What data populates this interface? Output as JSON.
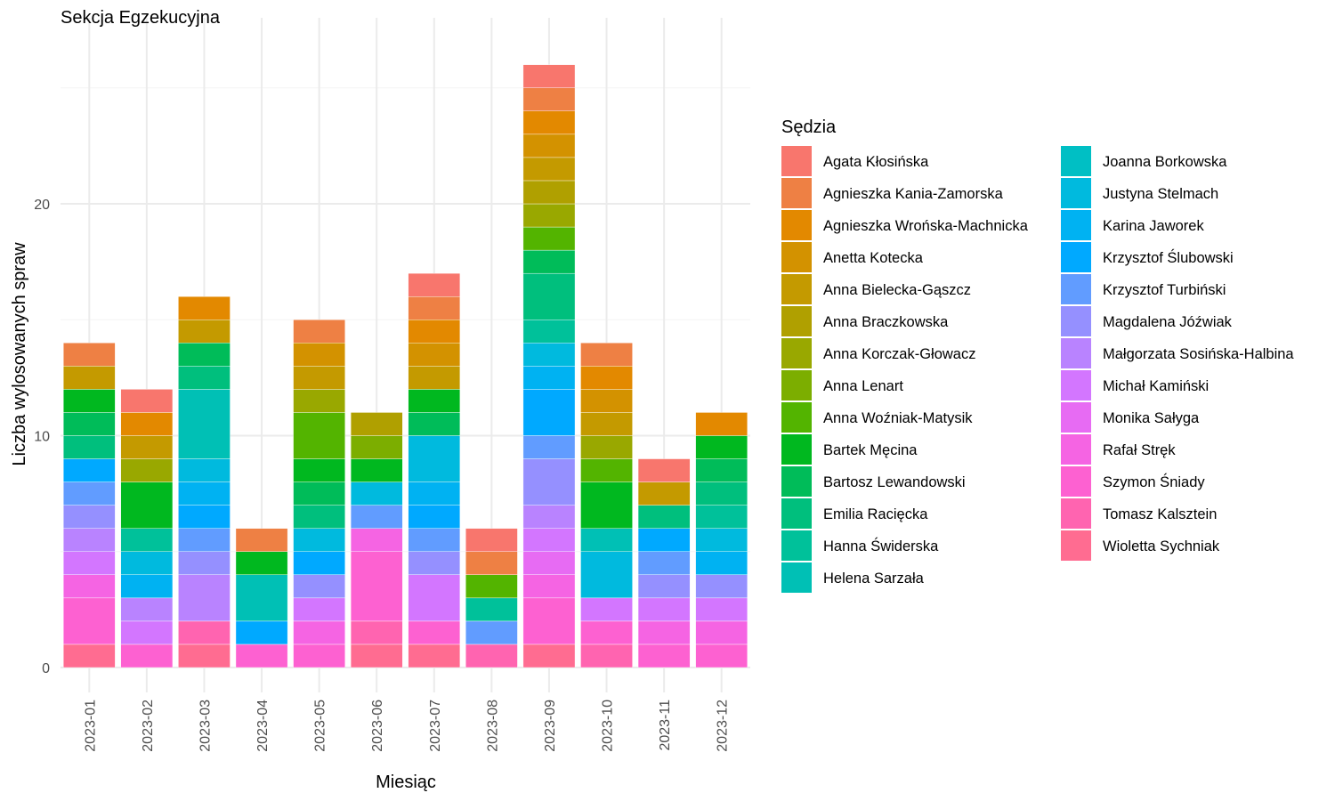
{
  "chart_data": {
    "type": "bar",
    "stacked": true,
    "title": "Sekcja Egzekucyjna",
    "xlabel": "Miesiąc",
    "ylabel": "Liczba wylosowanych spraw",
    "ylim": [
      0,
      27
    ],
    "yticks": [
      0,
      10,
      20
    ],
    "grid": true,
    "legend_title": "Sędzia",
    "legend_position": "right",
    "categories": [
      "2023-01",
      "2023-02",
      "2023-03",
      "2023-04",
      "2023-05",
      "2023-06",
      "2023-07",
      "2023-08",
      "2023-09",
      "2023-10",
      "2023-11",
      "2023-12"
    ],
    "series": [
      {
        "name": "Agata Kłosińska",
        "color": "#F8766D",
        "values": [
          0,
          1,
          0,
          0,
          0,
          0,
          1,
          1,
          1,
          0,
          1,
          0
        ]
      },
      {
        "name": "Agnieszka Kania-Zamorska",
        "color": "#EE8044",
        "values": [
          1,
          0,
          0,
          1,
          1,
          0,
          1,
          1,
          1,
          1,
          0,
          0
        ]
      },
      {
        "name": "Agnieszka Wrońska-Machnicka",
        "color": "#E38900",
        "values": [
          0,
          1,
          1,
          0,
          0,
          0,
          1,
          0,
          1,
          1,
          0,
          1
        ]
      },
      {
        "name": "Anetta Kotecka",
        "color": "#D39200",
        "values": [
          0,
          0,
          0,
          0,
          1,
          0,
          1,
          0,
          1,
          1,
          0,
          0
        ]
      },
      {
        "name": "Anna Bielecka-Gąszcz",
        "color": "#C49A00",
        "values": [
          1,
          1,
          1,
          0,
          1,
          0,
          1,
          0,
          1,
          1,
          1,
          0
        ]
      },
      {
        "name": "Anna Braczkowska",
        "color": "#B0A000",
        "values": [
          0,
          0,
          0,
          0,
          0,
          1,
          0,
          0,
          1,
          0,
          0,
          0
        ]
      },
      {
        "name": "Anna Korczak-Głowacz",
        "color": "#99A800",
        "values": [
          0,
          1,
          0,
          0,
          1,
          0,
          0,
          0,
          1,
          1,
          0,
          0
        ]
      },
      {
        "name": "Anna Lenart",
        "color": "#7CAE00",
        "values": [
          0,
          0,
          0,
          0,
          0,
          1,
          0,
          0,
          0,
          0,
          0,
          0
        ]
      },
      {
        "name": "Anna Woźniak-Matysik",
        "color": "#53B400",
        "values": [
          0,
          0,
          0,
          0,
          2,
          0,
          0,
          1,
          1,
          1,
          0,
          0
        ]
      },
      {
        "name": "Bartek Męcina",
        "color": "#00B81F",
        "values": [
          1,
          2,
          0,
          1,
          1,
          1,
          1,
          0,
          0,
          2,
          0,
          1
        ]
      },
      {
        "name": "Bartosz Lewandowski",
        "color": "#00BC59",
        "values": [
          1,
          0,
          1,
          0,
          1,
          0,
          1,
          0,
          1,
          0,
          0,
          1
        ]
      },
      {
        "name": "Emilia Racięcka",
        "color": "#00BF7D",
        "values": [
          1,
          0,
          1,
          0,
          1,
          0,
          0,
          0,
          2,
          0,
          1,
          1
        ]
      },
      {
        "name": "Hanna Świderska",
        "color": "#00C19A",
        "values": [
          0,
          1,
          0,
          0,
          0,
          0,
          0,
          1,
          1,
          0,
          0,
          1
        ]
      },
      {
        "name": "Helena Sarzała",
        "color": "#00C0B5",
        "values": [
          0,
          0,
          3,
          2,
          0,
          0,
          0,
          0,
          0,
          1,
          0,
          0
        ]
      },
      {
        "name": "Joanna Borkowska",
        "color": "#00BFC4",
        "values": [
          0,
          0,
          0,
          0,
          0,
          0,
          0,
          0,
          0,
          0,
          0,
          0
        ]
      },
      {
        "name": "Justyna Stelmach",
        "color": "#00BADE",
        "values": [
          0,
          1,
          1,
          0,
          1,
          1,
          2,
          0,
          1,
          2,
          0,
          1
        ]
      },
      {
        "name": "Karina Jaworek",
        "color": "#00B2F2",
        "values": [
          0,
          1,
          1,
          0,
          0,
          0,
          1,
          0,
          1,
          0,
          0,
          1
        ]
      },
      {
        "name": "Krzysztof Ślubowski",
        "color": "#00A9FF",
        "values": [
          1,
          0,
          1,
          1,
          1,
          0,
          1,
          0,
          2,
          0,
          1,
          0
        ]
      },
      {
        "name": "Krzysztof Turbiński",
        "color": "#619CFF",
        "values": [
          1,
          0,
          1,
          0,
          0,
          1,
          1,
          1,
          1,
          0,
          1,
          0
        ]
      },
      {
        "name": "Magdalena Jóźwiak",
        "color": "#9590FF",
        "values": [
          1,
          0,
          1,
          0,
          1,
          0,
          1,
          0,
          2,
          0,
          1,
          1
        ]
      },
      {
        "name": "Małgorzata Sosińska-Halbina",
        "color": "#B983FF",
        "values": [
          1,
          1,
          2,
          0,
          0,
          0,
          0,
          0,
          1,
          0,
          0,
          0
        ]
      },
      {
        "name": "Michał Kamiński",
        "color": "#D376FF",
        "values": [
          1,
          1,
          0,
          0,
          1,
          0,
          2,
          0,
          1,
          1,
          1,
          1
        ]
      },
      {
        "name": "Monika Sałyga",
        "color": "#E76BF3",
        "values": [
          0,
          0,
          0,
          0,
          0,
          0,
          0,
          0,
          1,
          0,
          0,
          0
        ]
      },
      {
        "name": "Rafał Stręk",
        "color": "#F564E3",
        "values": [
          1,
          0,
          0,
          0,
          1,
          1,
          0,
          0,
          1,
          0,
          1,
          1
        ]
      },
      {
        "name": "Szymon Śniady",
        "color": "#FD61D1",
        "values": [
          2,
          1,
          0,
          1,
          1,
          3,
          1,
          0,
          2,
          1,
          1,
          1
        ]
      },
      {
        "name": "Tomasz Kalsztein",
        "color": "#FF64B0",
        "values": [
          0,
          0,
          1,
          0,
          0,
          1,
          0,
          1,
          0,
          1,
          0,
          0
        ]
      },
      {
        "name": "Wioletta Sychniak",
        "color": "#FF6C91",
        "values": [
          1,
          0,
          1,
          0,
          0,
          1,
          1,
          0,
          1,
          0,
          0,
          0
        ]
      }
    ]
  }
}
